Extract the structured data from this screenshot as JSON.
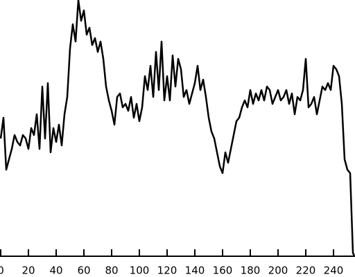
{
  "chart_data": {
    "type": "line",
    "x": [
      0,
      2,
      4,
      6,
      8,
      10,
      12,
      14,
      16,
      18,
      20,
      22,
      24,
      26,
      28,
      30,
      32,
      34,
      36,
      38,
      40,
      42,
      44,
      46,
      48,
      50,
      52,
      54,
      56,
      58,
      60,
      62,
      64,
      66,
      68,
      70,
      72,
      74,
      76,
      78,
      80,
      82,
      84,
      86,
      88,
      90,
      92,
      94,
      96,
      98,
      100,
      102,
      104,
      106,
      108,
      110,
      112,
      114,
      116,
      118,
      120,
      122,
      124,
      126,
      128,
      130,
      132,
      134,
      136,
      138,
      140,
      142,
      144,
      146,
      148,
      150,
      152,
      154,
      156,
      158,
      160,
      162,
      164,
      166,
      168,
      170,
      172,
      174,
      176,
      178,
      180,
      182,
      184,
      186,
      188,
      190,
      192,
      194,
      196,
      198,
      200,
      202,
      204,
      206,
      208,
      210,
      212,
      214,
      216,
      218,
      220,
      222,
      224,
      226,
      228,
      230,
      232,
      234,
      236,
      238,
      240,
      242,
      244,
      246,
      248,
      250,
      252,
      254,
      255
    ],
    "series": [
      {
        "color": "#000000",
        "values": [
          170,
          200,
          125,
          140,
          155,
          175,
          165,
          160,
          175,
          170,
          155,
          185,
          175,
          205,
          155,
          245,
          170,
          250,
          150,
          185,
          165,
          190,
          160,
          205,
          230,
          300,
          335,
          310,
          370,
          340,
          355,
          320,
          330,
          305,
          315,
          295,
          310,
          285,
          245,
          225,
          210,
          190,
          230,
          235,
          215,
          220,
          210,
          230,
          200,
          220,
          195,
          215,
          260,
          240,
          275,
          230,
          295,
          240,
          310,
          225,
          260,
          225,
          290,
          245,
          285,
          270,
          230,
          240,
          220,
          235,
          250,
          275,
          240,
          255,
          230,
          200,
          180,
          170,
          150,
          130,
          120,
          150,
          135,
          155,
          175,
          195,
          200,
          215,
          225,
          215,
          240,
          220,
          235,
          225,
          240,
          225,
          245,
          240,
          220,
          230,
          240,
          225,
          230,
          240,
          220,
          235,
          205,
          230,
          225,
          240,
          285,
          215,
          220,
          230,
          205,
          225,
          245,
          240,
          250,
          240,
          275,
          270,
          260,
          220,
          140,
          125,
          120,
          5,
          0
        ]
      }
    ],
    "xlim": [
      0,
      255
    ],
    "ylim": [
      0,
      370
    ],
    "xticks": [
      0,
      20,
      40,
      60,
      80,
      100,
      120,
      140,
      160,
      180,
      200,
      220,
      240
    ]
  }
}
